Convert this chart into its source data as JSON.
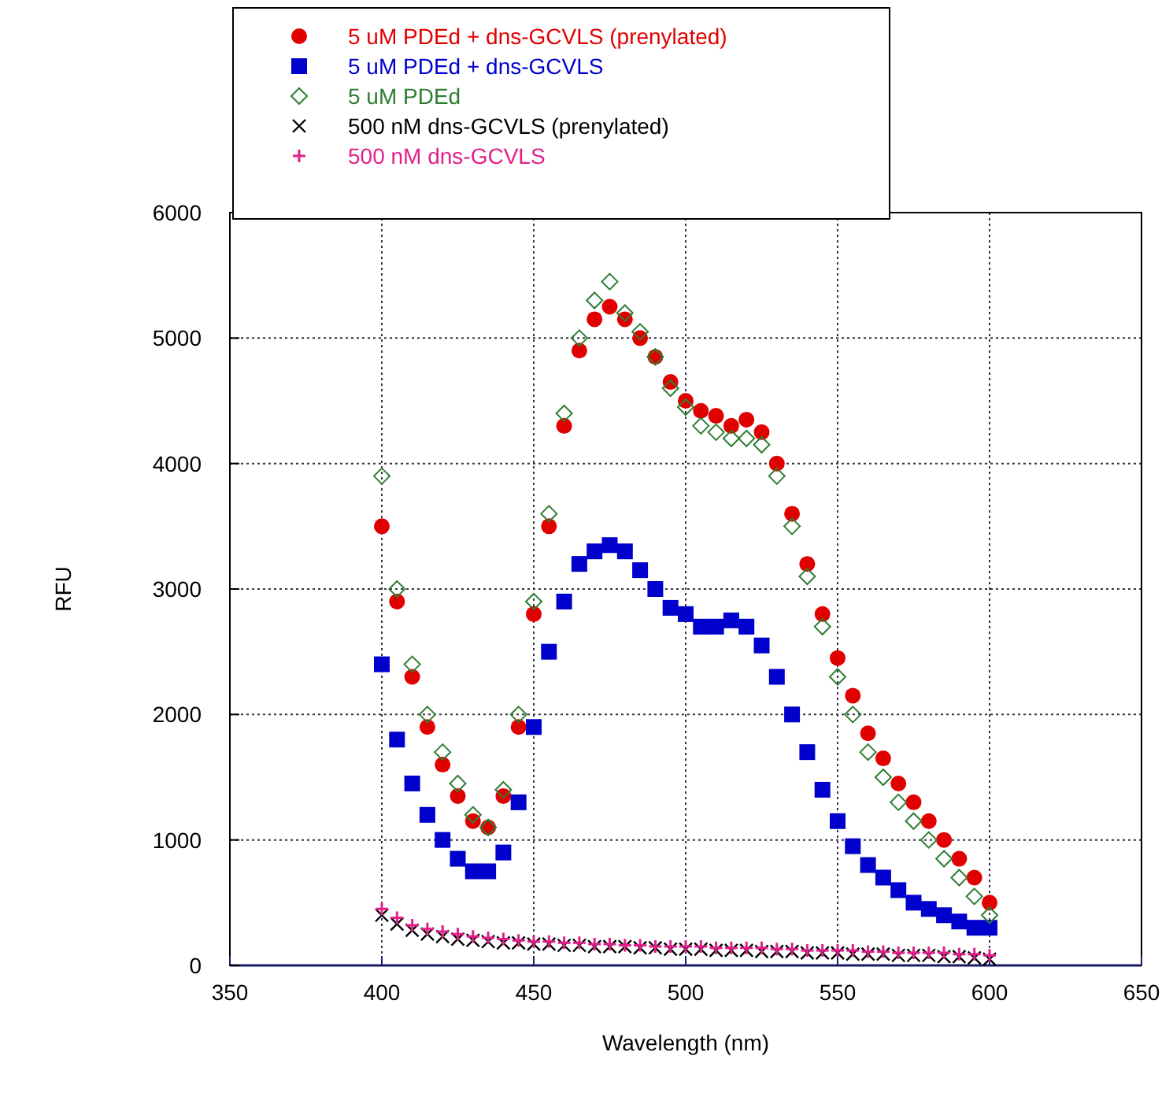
{
  "chart_data": {
    "type": "scatter",
    "xlabel": "Wavelength (nm)",
    "ylabel": "RFU",
    "xlim": [
      350,
      650
    ],
    "xticks": [
      350,
      400,
      450,
      500,
      550,
      600,
      650
    ],
    "ylim": [
      0,
      6000
    ],
    "yticks": [
      0,
      1000,
      2000,
      3000,
      4000,
      5000,
      6000
    ],
    "grid": true,
    "legend": "top left",
    "x": [
      400,
      405,
      410,
      415,
      420,
      425,
      430,
      435,
      440,
      445,
      450,
      455,
      460,
      465,
      470,
      475,
      480,
      485,
      490,
      495,
      500,
      505,
      510,
      515,
      520,
      525,
      530,
      535,
      540,
      545,
      550,
      555,
      560,
      565,
      570,
      575,
      580,
      585,
      590,
      595,
      600
    ],
    "series": [
      {
        "name": "5 uM PDEd + dns-GCVLS (prenylated)",
        "color": "#e00000",
        "marker": "circle",
        "values": [
          3500,
          2900,
          2300,
          1900,
          1600,
          1350,
          1150,
          1100,
          1350,
          1900,
          2800,
          3500,
          4300,
          4900,
          5150,
          5250,
          5150,
          5000,
          4850,
          4650,
          4500,
          4420,
          4380,
          4300,
          4350,
          4250,
          4000,
          3600,
          3200,
          2800,
          2450,
          2150,
          1850,
          1650,
          1450,
          1300,
          1150,
          1000,
          850,
          700,
          500
        ]
      },
      {
        "name": "5 uM PDEd + dns-GCVLS",
        "color": "#0000cc",
        "marker": "square",
        "values": [
          2400,
          1800,
          1450,
          1200,
          1000,
          850,
          750,
          750,
          900,
          1300,
          1900,
          2500,
          2900,
          3200,
          3300,
          3350,
          3300,
          3150,
          3000,
          2850,
          2800,
          2700,
          2700,
          2750,
          2700,
          2550,
          2300,
          2000,
          1700,
          1400,
          1150,
          950,
          800,
          700,
          600,
          500,
          450,
          400,
          350,
          300,
          300
        ]
      },
      {
        "name": "5 uM PDEd",
        "color": "#2e7d32",
        "marker": "diamond",
        "values": [
          3900,
          3000,
          2400,
          2000,
          1700,
          1450,
          1200,
          1100,
          1400,
          2000,
          2900,
          3600,
          4400,
          5000,
          5300,
          5450,
          5200,
          5050,
          4850,
          4600,
          4450,
          4300,
          4250,
          4200,
          4200,
          4150,
          3900,
          3500,
          3100,
          2700,
          2300,
          2000,
          1700,
          1500,
          1300,
          1150,
          1000,
          850,
          700,
          550,
          400
        ]
      },
      {
        "name": "500 nM dns-GCVLS (prenylated)",
        "color": "#000000",
        "marker": "x",
        "values": [
          400,
          330,
          280,
          250,
          230,
          210,
          200,
          190,
          180,
          180,
          170,
          170,
          160,
          160,
          150,
          150,
          150,
          140,
          140,
          130,
          130,
          130,
          120,
          120,
          120,
          110,
          110,
          110,
          100,
          100,
          100,
          90,
          90,
          90,
          80,
          80,
          80,
          70,
          70,
          60,
          50
        ]
      },
      {
        "name": "500 nM dns-GCVLS",
        "color": "#e0208a",
        "marker": "cross",
        "values": [
          450,
          380,
          320,
          290,
          270,
          250,
          230,
          220,
          210,
          200,
          190,
          190,
          180,
          180,
          170,
          170,
          160,
          160,
          150,
          150,
          150,
          150,
          140,
          140,
          140,
          140,
          130,
          130,
          120,
          120,
          120,
          120,
          110,
          110,
          100,
          100,
          100,
          100,
          90,
          90,
          80
        ]
      }
    ]
  }
}
